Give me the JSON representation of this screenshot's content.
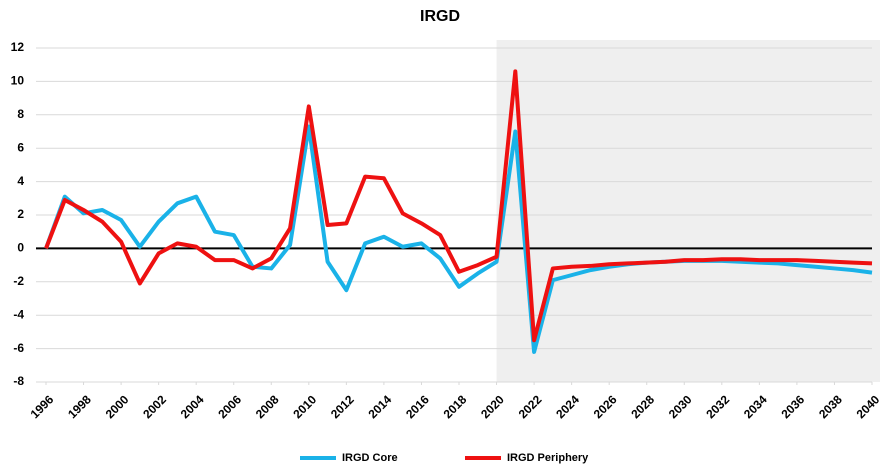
{
  "chart_data": {
    "type": "line",
    "title": "IRGD",
    "x": [
      1996,
      1997,
      1998,
      1999,
      2000,
      2001,
      2002,
      2003,
      2004,
      2005,
      2006,
      2007,
      2008,
      2009,
      2010,
      2011,
      2012,
      2013,
      2014,
      2015,
      2016,
      2017,
      2018,
      2019,
      2020,
      2021,
      2022,
      2023,
      2024,
      2025,
      2026,
      2027,
      2028,
      2029,
      2030,
      2031,
      2032,
      2033,
      2034,
      2035,
      2036,
      2037,
      2038,
      2039,
      2040
    ],
    "series": [
      {
        "name": "IRGD Core",
        "color": "#1ab2e8",
        "values": [
          0,
          3.1,
          2.1,
          2.3,
          1.7,
          0.1,
          1.6,
          2.7,
          3.1,
          1.0,
          0.8,
          -1.1,
          -1.2,
          0.2,
          7.3,
          -0.8,
          -2.5,
          0.3,
          0.7,
          0.1,
          0.3,
          -0.6,
          -2.3,
          -1.5,
          -0.8,
          7.0,
          -6.2,
          -1.9,
          -1.6,
          -1.3,
          -1.1,
          -0.95,
          -0.85,
          -0.8,
          -0.75,
          -0.75,
          -0.75,
          -0.8,
          -0.85,
          -0.9,
          -1.0,
          -1.1,
          -1.2,
          -1.3,
          -1.45
        ]
      },
      {
        "name": "IRGD Periphery",
        "color": "#ee1111",
        "values": [
          0,
          2.9,
          2.3,
          1.6,
          0.4,
          -2.1,
          -0.3,
          0.3,
          0.1,
          -0.7,
          -0.7,
          -1.2,
          -0.6,
          1.2,
          8.5,
          1.4,
          1.5,
          4.3,
          4.2,
          2.1,
          1.5,
          0.8,
          -1.4,
          -1.0,
          -0.5,
          10.6,
          -5.5,
          -1.2,
          -1.1,
          -1.05,
          -0.95,
          -0.9,
          -0.85,
          -0.8,
          -0.7,
          -0.7,
          -0.65,
          -0.65,
          -0.7,
          -0.7,
          -0.7,
          -0.75,
          -0.8,
          -0.85,
          -0.9
        ]
      }
    ],
    "xlim": [
      1996,
      2040
    ],
    "xticks": [
      1996,
      1998,
      2000,
      2002,
      2004,
      2006,
      2008,
      2010,
      2012,
      2014,
      2016,
      2018,
      2020,
      2022,
      2024,
      2026,
      2028,
      2030,
      2032,
      2034,
      2036,
      2038,
      2040
    ],
    "ylim": [
      -8,
      12
    ],
    "yticks": [
      -8,
      -6,
      -4,
      -2,
      0,
      2,
      4,
      6,
      8,
      10,
      12
    ],
    "grid": true,
    "shaded_xrange": [
      2020,
      2040
    ],
    "legend": "bottom"
  }
}
